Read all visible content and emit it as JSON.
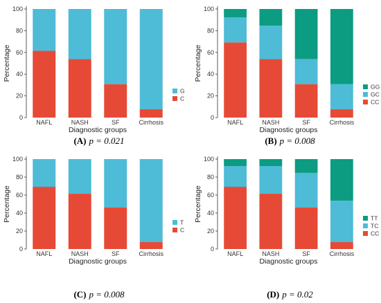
{
  "colors": {
    "C": "#e64a36",
    "mid": "#4ebbd7",
    "top": "#0b9c82",
    "axis": "#333333",
    "grid": "#e6e6e6"
  },
  "chart_data": [
    {
      "type": "bar",
      "stacked": true,
      "caption_letter": "(A)",
      "caption_p": "p = 0.021",
      "xlabel": "Diagnostic groups",
      "ylabel": "Percentage",
      "ylim": [
        0,
        100
      ],
      "yticks": [
        "0",
        "20",
        "40",
        "60",
        "80",
        "100"
      ],
      "categories": [
        "NAFL",
        "NASH",
        "SF",
        "Cirrhosis"
      ],
      "legend_position": "right",
      "series": [
        {
          "name": "C",
          "color": "#e64a36",
          "values": [
            61.5,
            53.8,
            30.8,
            7.7
          ]
        },
        {
          "name": "G",
          "color": "#4ebbd7",
          "values": [
            38.5,
            46.2,
            69.2,
            92.3
          ]
        }
      ]
    },
    {
      "type": "bar",
      "stacked": true,
      "caption_letter": "(B)",
      "caption_p": "p = 0.008",
      "xlabel": "Diagnostic groups",
      "ylabel": "Percentage",
      "ylim": [
        0,
        100
      ],
      "yticks": [
        "0",
        "20",
        "40",
        "60",
        "80",
        "100"
      ],
      "categories": [
        "NAFL",
        "NASH",
        "SF",
        "Cirrhosis"
      ],
      "legend_position": "right",
      "series": [
        {
          "name": "CC",
          "color": "#e64a36",
          "values": [
            69.2,
            53.8,
            30.8,
            7.7
          ]
        },
        {
          "name": "GC",
          "color": "#4ebbd7",
          "values": [
            23.1,
            30.8,
            23.1,
            23.1
          ]
        },
        {
          "name": "GG",
          "color": "#0b9c82",
          "values": [
            7.7,
            15.4,
            46.1,
            69.2
          ]
        }
      ]
    },
    {
      "type": "bar",
      "stacked": true,
      "caption_letter": "(C)",
      "caption_p": "p = 0.008",
      "xlabel": "Diagnostic groups",
      "ylabel": "Percentage",
      "ylim": [
        0,
        100
      ],
      "yticks": [
        "0",
        "20",
        "40",
        "60",
        "80",
        "100"
      ],
      "categories": [
        "NAFL",
        "NASH",
        "SF",
        "Cirrhosis"
      ],
      "legend_position": "right",
      "series": [
        {
          "name": "C",
          "color": "#e64a36",
          "values": [
            69.2,
            61.5,
            46.2,
            7.7
          ]
        },
        {
          "name": "T",
          "color": "#4ebbd7",
          "values": [
            30.8,
            38.5,
            53.8,
            92.3
          ]
        }
      ]
    },
    {
      "type": "bar",
      "stacked": true,
      "caption_letter": "(D)",
      "caption_p": "p = 0.02",
      "xlabel": "Diagnostic groups",
      "ylabel": "Percentage",
      "ylim": [
        0,
        100
      ],
      "yticks": [
        "0",
        "20",
        "40",
        "60",
        "80",
        "100"
      ],
      "categories": [
        "NAFL",
        "NASH",
        "SF",
        "Cirrhosis"
      ],
      "legend_position": "right",
      "series": [
        {
          "name": "CC",
          "color": "#e64a36",
          "values": [
            69.2,
            61.5,
            46.2,
            7.7
          ]
        },
        {
          "name": "TC",
          "color": "#4ebbd7",
          "values": [
            23.1,
            30.8,
            38.5,
            46.1
          ]
        },
        {
          "name": "TT",
          "color": "#0b9c82",
          "values": [
            7.7,
            7.7,
            15.3,
            46.2
          ]
        }
      ]
    }
  ]
}
